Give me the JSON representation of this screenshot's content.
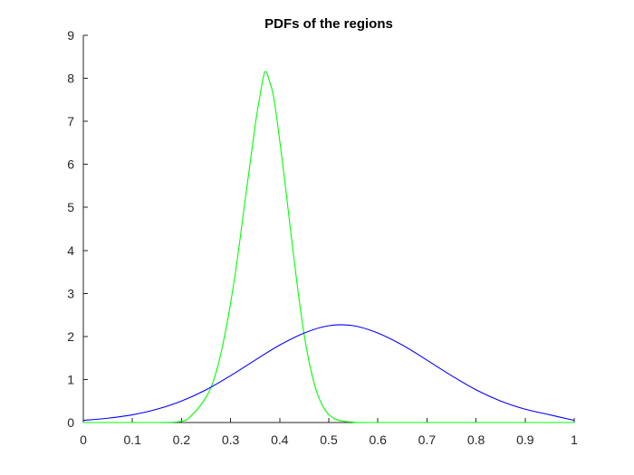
{
  "chart_data": {
    "type": "line",
    "title": "PDFs of the regions",
    "xlabel": "",
    "ylabel": "",
    "xlim": [
      0,
      1
    ],
    "ylim": [
      0,
      9
    ],
    "xticks": [
      0,
      0.1,
      0.2,
      0.3,
      0.4,
      0.5,
      0.6,
      0.7,
      0.8,
      0.9,
      1
    ],
    "xtick_labels": [
      "0",
      "0.1",
      "0.2",
      "0.3",
      "0.4",
      "0.5",
      "0.6",
      "0.7",
      "0.8",
      "0.9",
      "1"
    ],
    "yticks": [
      0,
      1,
      2,
      3,
      4,
      5,
      6,
      7,
      8,
      9
    ],
    "ytick_labels": [
      "0",
      "1",
      "2",
      "3",
      "4",
      "5",
      "6",
      "7",
      "8",
      "9"
    ],
    "grid": false,
    "legend": "none",
    "series": [
      {
        "color": "#00FF00",
        "x": [
          0,
          0.15,
          0.2,
          0.22,
          0.25,
          0.27,
          0.29,
          0.31,
          0.33,
          0.35,
          0.36,
          0.37,
          0.38,
          0.39,
          0.41,
          0.43,
          0.45,
          0.47,
          0.49,
          0.51,
          0.53,
          0.55,
          0.6,
          1
        ],
        "y": [
          0,
          0,
          0.03,
          0.16,
          0.59,
          1.15,
          2.14,
          3.5,
          5.2,
          6.9,
          7.6,
          8.15,
          7.9,
          7.4,
          5.65,
          3.72,
          2.03,
          0.92,
          0.34,
          0.1,
          0.03,
          0.01,
          0,
          0
        ]
      },
      {
        "color": "#0000FF",
        "x": [
          0,
          0.05,
          0.1,
          0.15,
          0.2,
          0.25,
          0.3,
          0.35,
          0.4,
          0.45,
          0.5,
          0.55,
          0.6,
          0.65,
          0.7,
          0.75,
          0.8,
          0.85,
          0.9,
          0.95,
          1
        ],
        "y": [
          0.05,
          0.1,
          0.18,
          0.31,
          0.5,
          0.76,
          1.09,
          1.45,
          1.8,
          2.08,
          2.25,
          2.25,
          2.08,
          1.8,
          1.45,
          1.09,
          0.76,
          0.5,
          0.31,
          0.18,
          0.05
        ]
      }
    ]
  }
}
